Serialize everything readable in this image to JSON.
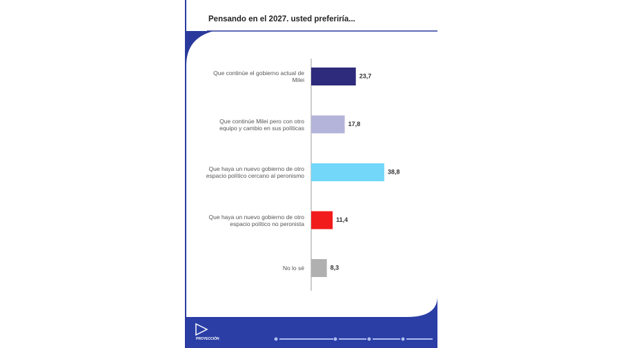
{
  "chart_data": {
    "type": "bar",
    "orientation": "horizontal",
    "title": "Pensando en el 2027. usted preferiría...",
    "categories": [
      "Que continúe el gobierno actual de Milei",
      "Que continúe Milei pero con otro equipo y cambio en sus políticas",
      "Que haya un nuevo gobierno de otro espacio político cercano al peronismo",
      "Que haya un nuevo gobierno de otro espacio político no peronista",
      "No lo sé"
    ],
    "values": [
      23.7,
      17.8,
      38.8,
      11.4,
      8.3
    ],
    "value_labels": [
      "23,7",
      "17,8",
      "38,8",
      "11,4",
      "8,3"
    ],
    "colors": [
      "#2e2a7c",
      "#b4b4da",
      "#72d7f8",
      "#f21b1b",
      "#b0b0b0"
    ]
  },
  "brand": "PROYECCIÓN"
}
